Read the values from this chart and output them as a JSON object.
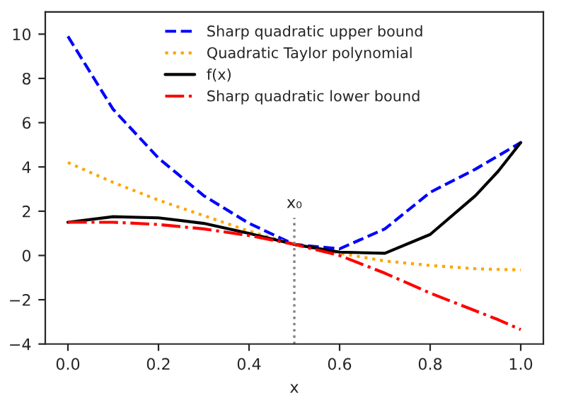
{
  "chart_data": {
    "type": "line",
    "xlabel": "x",
    "x": [
      0.0,
      0.1,
      0.2,
      0.3,
      0.4,
      0.5,
      0.6,
      0.7,
      0.8,
      0.9,
      0.95,
      1.0
    ],
    "series": [
      {
        "name": "Sharp quadratic upper bound",
        "color": "#0000ff",
        "line_style": "dashed",
        "values": [
          9.9,
          6.6,
          4.4,
          2.7,
          1.45,
          0.5,
          0.3,
          1.2,
          2.85,
          3.9,
          4.5,
          5.1
        ]
      },
      {
        "name": "Quadratic Taylor polynomial",
        "color": "#ffa500",
        "line_style": "dotted",
        "values": [
          4.2,
          3.3,
          2.5,
          1.8,
          1.1,
          0.5,
          0.1,
          -0.25,
          -0.45,
          -0.6,
          -0.63,
          -0.65
        ]
      },
      {
        "name": "f(x)",
        "color": "#000000",
        "line_style": "solid",
        "values": [
          1.5,
          1.75,
          1.7,
          1.45,
          1.0,
          0.5,
          0.15,
          0.1,
          0.95,
          2.7,
          3.8,
          5.1
        ]
      },
      {
        "name": "Sharp quadratic lower bound",
        "color": "#ff0000",
        "line_style": "dashdot",
        "values": [
          1.5,
          1.5,
          1.4,
          1.2,
          0.9,
          0.5,
          0.0,
          -0.8,
          -1.7,
          -2.5,
          -2.9,
          -3.35
        ]
      }
    ],
    "ref_lines": [
      {
        "axis": "x",
        "value": 0.5,
        "label": "x₀",
        "color": "#808080",
        "line_style": "dotted"
      }
    ],
    "xlim": [
      -0.05,
      1.05
    ],
    "ylim": [
      -4,
      11
    ],
    "xticks": [
      {
        "value": 0.0,
        "label": "0.0"
      },
      {
        "value": 0.2,
        "label": "0.2"
      },
      {
        "value": 0.4,
        "label": "0.4"
      },
      {
        "value": 0.6,
        "label": "0.6"
      },
      {
        "value": 0.8,
        "label": "0.8"
      },
      {
        "value": 1.0,
        "label": "1.0"
      }
    ],
    "yticks": [
      {
        "value": -4,
        "label": "−4"
      },
      {
        "value": -2,
        "label": "−2"
      },
      0,
      2,
      4,
      6,
      8,
      10
    ],
    "legend": "top",
    "grid": false
  }
}
